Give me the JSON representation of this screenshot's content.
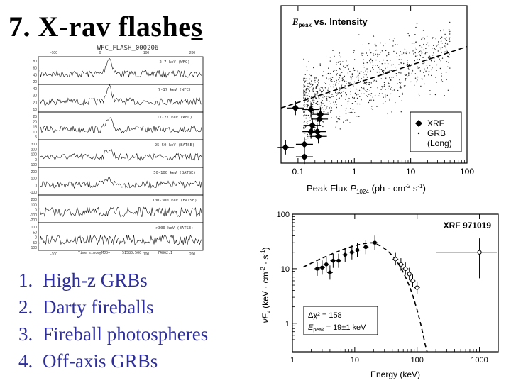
{
  "slide": {
    "title_number": "7.",
    "title_text": "X-rav flashe",
    "title_underlined": "s",
    "list": [
      {
        "num": "1.",
        "text": "High-z GRBs"
      },
      {
        "num": "2.",
        "text": "Darty fireballs"
      },
      {
        "num": "3.",
        "text": "Fireball photospheres"
      },
      {
        "num": "4.",
        "text": "Off-axis GRBs"
      }
    ]
  },
  "lightcurve": {
    "title": "WFC_FLASH_000206",
    "top_ticks": [
      "-100",
      "0",
      "100",
      "200"
    ],
    "bottom_ticks": [
      "-100",
      "0",
      "100",
      "200"
    ],
    "xlabel_parts": [
      "Time since MJD=",
      "51580.500",
      "74862.1"
    ],
    "panels": [
      {
        "label": "2-7 keV (WFC)",
        "yticks": [
          "80",
          "60",
          "40",
          "20"
        ],
        "peak": 1.0
      },
      {
        "label": "7-17 keV (WFC)",
        "yticks": [
          "40",
          "30",
          "20",
          "10"
        ],
        "peak": 0.9
      },
      {
        "label": "17-27 keV (WFC)",
        "yticks": [
          "25",
          "20",
          "15",
          "10",
          "5"
        ],
        "peak": 0.6
      },
      {
        "label": "25-50 keV (BATSE)",
        "yticks": [
          "300",
          "200",
          "100",
          "0",
          "-100"
        ],
        "peak": 0.5
      },
      {
        "label": "50-100 keV (BATSE)",
        "yticks": [
          "200",
          "100",
          "0",
          "-100"
        ],
        "peak": 0.35
      },
      {
        "label": "100-300 keV (BATSE)",
        "yticks": [
          "200",
          "100",
          "0",
          "-100",
          "-200"
        ],
        "peak": 0.0
      },
      {
        "label": ">300 keV (BATSE)",
        "yticks": [
          "100",
          "50",
          "0",
          "-50",
          "-100"
        ],
        "peak": 0.0
      }
    ]
  },
  "chart_data": [
    {
      "type": "scatter",
      "title_italic": "E",
      "title_sub": "peak",
      "title_rest": " vs. Intensity",
      "xlabel_main": "Peak Flux ",
      "xlabel_italic": "P",
      "xlabel_sub": "1024",
      "xlabel_units": " (ph · cm",
      "xlabel_exp1": "-2",
      "xlabel_s": " s",
      "xlabel_exp2": "-1",
      "xlabel_close": ")",
      "xscale": "log",
      "xlim": [
        0.05,
        100
      ],
      "xticks": [
        "0.1",
        "1",
        "10",
        "100"
      ],
      "ylim_rel": [
        0,
        1
      ],
      "legend": [
        {
          "marker": "diamond",
          "label": "XRF"
        },
        {
          "marker": "dot",
          "label": "GRB"
        },
        {
          "marker": "none",
          "label": "(Long)"
        }
      ],
      "fit_line": {
        "x": [
          0.05,
          100
        ],
        "y": [
          0.35,
          0.74
        ]
      },
      "xrf_points": [
        {
          "x": 0.09,
          "y": 0.35
        },
        {
          "x": 0.17,
          "y": 0.34
        },
        {
          "x": 0.25,
          "y": 0.31
        },
        {
          "x": 0.18,
          "y": 0.24
        },
        {
          "x": 0.17,
          "y": 0.2
        },
        {
          "x": 0.22,
          "y": 0.2
        },
        {
          "x": 0.24,
          "y": 0.28
        },
        {
          "x": 0.23,
          "y": 0.17
        },
        {
          "x": 0.13,
          "y": 0.12
        },
        {
          "x": 0.06,
          "y": 0.1
        },
        {
          "x": 0.13,
          "y": 0.04
        }
      ]
    },
    {
      "type": "scatter",
      "title": "XRF 971019",
      "xlabel": "Energy (keV)",
      "ylabel_nu": "νF",
      "ylabel_sub": "ν",
      "ylabel_units": " (keV · cm",
      "ylabel_exp1": "-2",
      "ylabel_s": " · s",
      "ylabel_exp2": "-1",
      "ylabel_close": ")",
      "xscale": "log",
      "yscale": "log",
      "xlim": [
        1,
        2000
      ],
      "ylim": [
        0.3,
        100
      ],
      "xticks": [
        "1",
        "10",
        "100",
        "1000"
      ],
      "yticks": [
        "1",
        "10",
        "100"
      ],
      "annotation_line1": "Δχ² = 158",
      "annotation_line2_italic": "E",
      "annotation_line2_sub": "peak",
      "annotation_line2_rest": " = 19±1 keV",
      "filled_points": [
        {
          "x": 2.5,
          "y": 10
        },
        {
          "x": 3.0,
          "y": 10.5
        },
        {
          "x": 3.5,
          "y": 12
        },
        {
          "x": 4.0,
          "y": 8.5
        },
        {
          "x": 4.5,
          "y": 14
        },
        {
          "x": 5.5,
          "y": 14
        },
        {
          "x": 7.0,
          "y": 18
        },
        {
          "x": 9.0,
          "y": 20
        },
        {
          "x": 11,
          "y": 22
        },
        {
          "x": 15,
          "y": 25
        },
        {
          "x": 21,
          "y": 30
        }
      ],
      "open_points": [
        {
          "x": 45,
          "y": 15
        },
        {
          "x": 55,
          "y": 12
        },
        {
          "x": 65,
          "y": 10
        },
        {
          "x": 75,
          "y": 8
        },
        {
          "x": 85,
          "y": 6
        },
        {
          "x": 100,
          "y": 4.5
        },
        {
          "x": 1000,
          "y": 20
        }
      ]
    }
  ]
}
